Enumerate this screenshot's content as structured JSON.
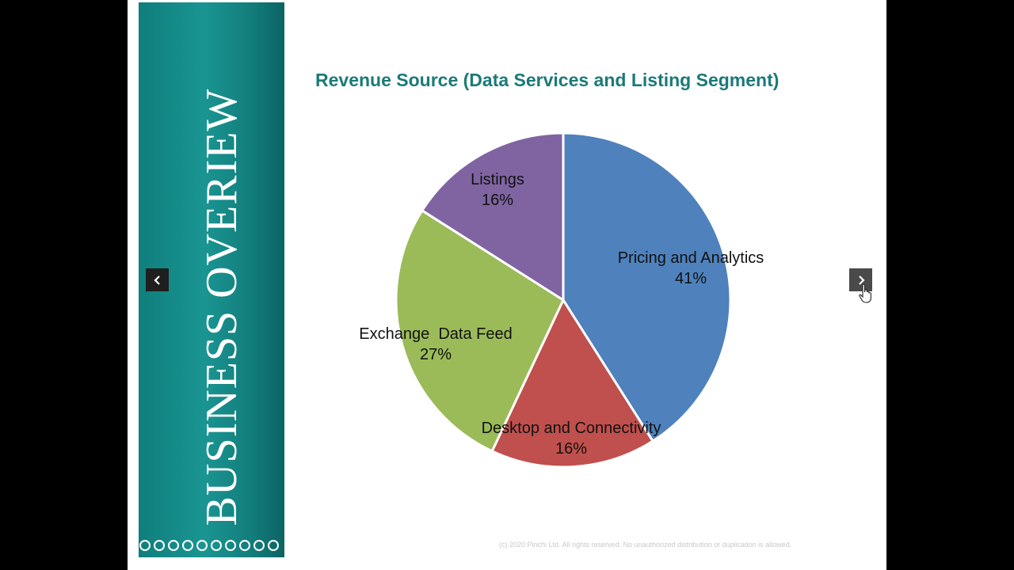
{
  "sidebar": {
    "title": "BUSINESS OVERIEW",
    "dot_count": 10
  },
  "navigation": {
    "prev_icon": "chevron-left-icon",
    "next_icon": "chevron-right-icon"
  },
  "chart_data": {
    "type": "pie",
    "title": "Revenue Source (Data Services and Listing Segment)",
    "slices": [
      {
        "label": "Pricing and Analytics",
        "value": 41,
        "display": "41%",
        "color": "#4f81bd"
      },
      {
        "label": "Desktop and Connectivity",
        "value": 16,
        "display": "16%",
        "color": "#c0504d"
      },
      {
        "label": "Exchange  Data Feed",
        "value": 27,
        "display": "27%",
        "color": "#9bbb59"
      },
      {
        "label": "Listings",
        "value": 16,
        "display": "16%",
        "color": "#8064a2"
      }
    ],
    "start": "12 o'clock",
    "direction": "clockwise",
    "legend": "none"
  },
  "footer": {
    "copyright": "(c) 2020 Pinchi Ltd. All rights reserved. No unauthorized distribution or duplication is allowed."
  },
  "colors": {
    "accent": "#1b7a78",
    "panel": "#148987"
  }
}
